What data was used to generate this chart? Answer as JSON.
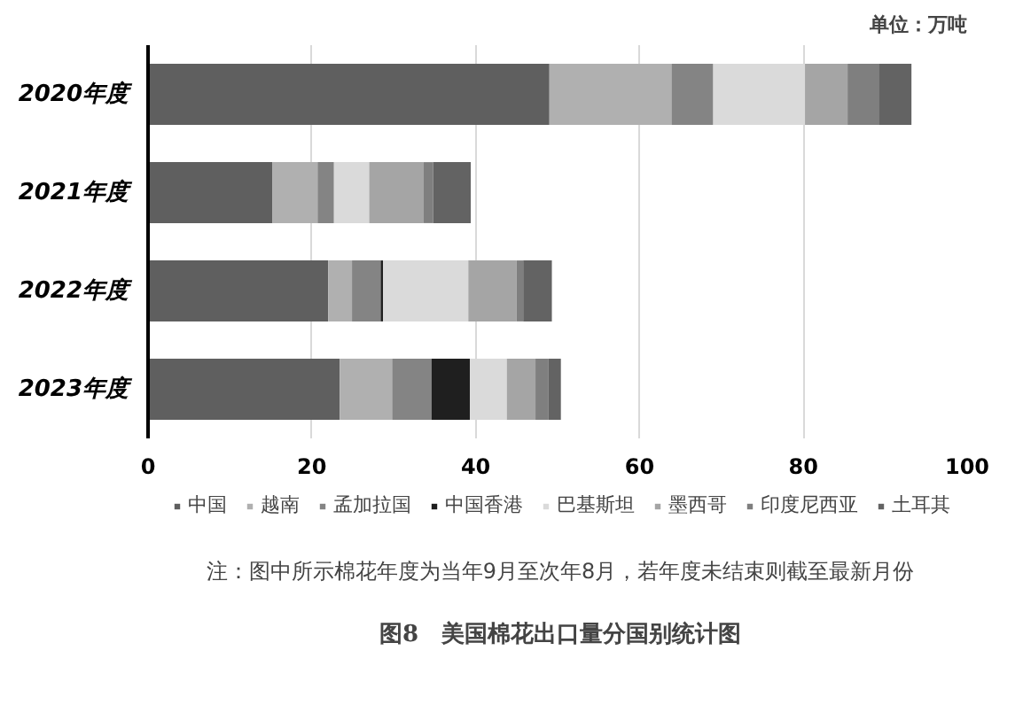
{
  "chart_data": {
    "type": "bar",
    "orientation": "horizontal",
    "stacked": true,
    "title": "图8　美国棉花出口量分国别统计图",
    "annotations": [
      "单位：万吨",
      "注：图中所示棉花年度为当年9月至次年8月，若年度未结束则截至最新月份"
    ],
    "categories": [
      "2020年度",
      "2021年度",
      "2022年度",
      "2023年度"
    ],
    "series": [
      {
        "name": "中国",
        "color": "#5f5f5f",
        "values": [
          49.0,
          15.2,
          22.0,
          23.4
        ]
      },
      {
        "name": "越南",
        "color": "#b0b0b0",
        "values": [
          14.9,
          5.5,
          2.9,
          6.4
        ]
      },
      {
        "name": "孟加拉国",
        "color": "#848484",
        "values": [
          5.1,
          2.0,
          3.5,
          4.8
        ]
      },
      {
        "name": "中国香港",
        "color": "#1f1f1f",
        "values": [
          0,
          0,
          0.3,
          4.7
        ]
      },
      {
        "name": "巴基斯坦",
        "color": "#dadada",
        "values": [
          11.2,
          4.3,
          10.4,
          4.5
        ]
      },
      {
        "name": "墨西哥",
        "color": "#a5a5a5",
        "values": [
          5.2,
          6.6,
          5.9,
          3.5
        ]
      },
      {
        "name": "印度尼西亚",
        "color": "#7f7f7f",
        "values": [
          3.8,
          1.2,
          0.8,
          1.6
        ]
      },
      {
        "name": "土耳其",
        "color": "#636363",
        "values": [
          4.0,
          4.6,
          3.5,
          1.5
        ]
      }
    ],
    "xlim": [
      0,
      100
    ],
    "xticks": [
      0,
      20,
      40,
      60,
      80,
      100
    ],
    "grid": "x",
    "legend": "bottom"
  }
}
